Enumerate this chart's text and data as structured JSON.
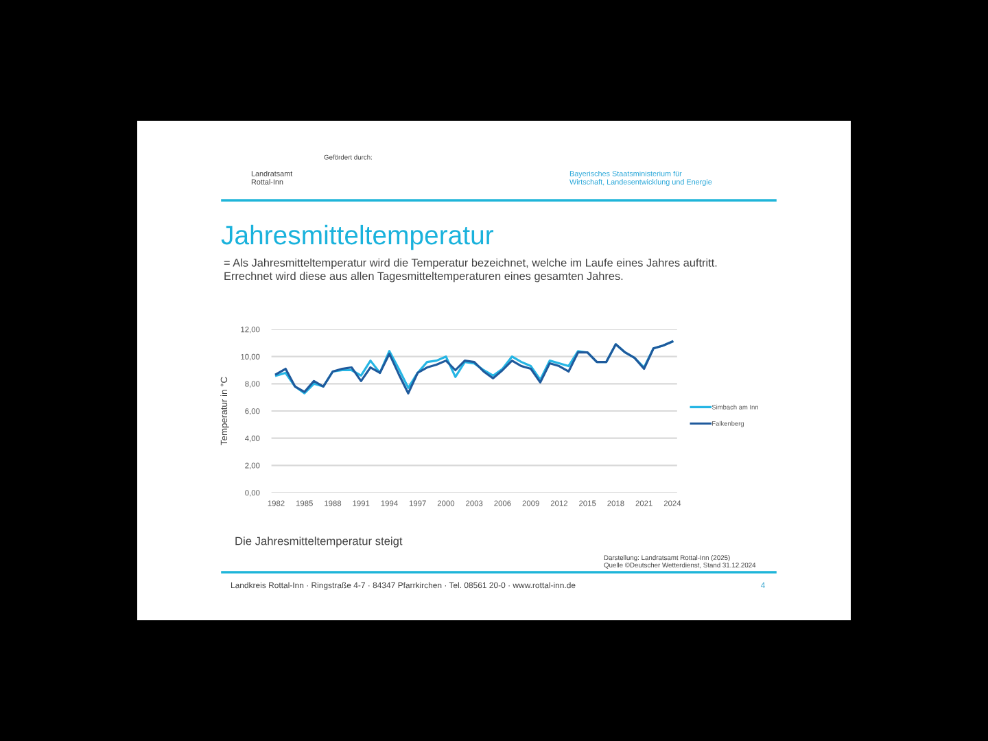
{
  "chart_data": {
    "type": "line",
    "title": "Jahresmitteltemperatur",
    "subtitle": "= Als Jahresmitteltemperatur wird die Temperatur bezeichnet, welche im Laufe eines Jahres auftritt.\nErrechnet wird diese aus allen Tagesmitteltemperaturen eines gesamten Jahres.",
    "ylabel": "Temperatur in °C",
    "annotations": [
      "Landratsamt\nRottal-Inn",
      "Gefördert durch:",
      "Bayerisches Staatsministerium für\nWirtschaft, Landesentwicklung und Energie",
      "Die Jahresmitteltemperatur steigt",
      "Darstellung: Landratsamt Rottal-Inn (2025)\nQuelle ©Deutscher Wetterdienst, Stand 31.12.2024",
      "Landkreis Rottal-Inn · Ringstraße 4-7 · 84347 Pfarrkirchen · Tel. 08561 20-0 · www.rottal-inn.de",
      "4"
    ],
    "x": [
      1982,
      1983,
      1984,
      1985,
      1986,
      1987,
      1988,
      1989,
      1990,
      1991,
      1992,
      1993,
      1994,
      1995,
      1996,
      1997,
      1998,
      1999,
      2000,
      2001,
      2002,
      2003,
      2004,
      2005,
      2006,
      2007,
      2008,
      2009,
      2010,
      2011,
      2012,
      2013,
      2014,
      2015,
      2016,
      2017,
      2018,
      2019,
      2020,
      2021,
      2022,
      2023,
      2024
    ],
    "series": [
      {
        "name": "Simbach am Inn",
        "color": "#25b5e4",
        "values": [
          8.6,
          8.8,
          7.8,
          7.3,
          8.0,
          7.8,
          8.9,
          9.0,
          9.0,
          8.6,
          9.7,
          8.8,
          10.4,
          9.1,
          7.7,
          8.8,
          9.6,
          9.7,
          10.0,
          8.5,
          9.6,
          9.5,
          9.0,
          8.6,
          9.1,
          10.0,
          9.6,
          9.3,
          8.3,
          9.7,
          9.5,
          9.3,
          10.4,
          10.3,
          9.6,
          9.6,
          10.9,
          10.3,
          9.9,
          9.2,
          10.6,
          10.8,
          11.1
        ]
      },
      {
        "name": "Falkenberg",
        "color": "#1f5a9c",
        "values": [
          8.7,
          9.1,
          7.8,
          7.4,
          8.2,
          7.8,
          8.9,
          9.1,
          9.2,
          8.2,
          9.2,
          8.8,
          10.2,
          8.7,
          7.3,
          8.8,
          9.2,
          9.4,
          9.7,
          9.0,
          9.7,
          9.6,
          8.9,
          8.4,
          9.0,
          9.7,
          9.3,
          9.1,
          8.1,
          9.5,
          9.3,
          8.9,
          10.3,
          10.3,
          9.6,
          9.6,
          10.9,
          10.3,
          9.9,
          9.1,
          10.6,
          10.8,
          11.1
        ]
      }
    ],
    "xlim": [
      1981.5,
      2024.5
    ],
    "xticks": [
      1982,
      1985,
      1988,
      1991,
      1994,
      1997,
      2000,
      2003,
      2006,
      2009,
      2012,
      2015,
      2018,
      2021,
      2024
    ],
    "ylim": [
      0,
      12
    ],
    "yticks": [
      {
        "value": 0,
        "label": "0,00"
      },
      {
        "value": 2,
        "label": "2,00"
      },
      {
        "value": 4,
        "label": "4,00"
      },
      {
        "value": 6,
        "label": "6,00"
      },
      {
        "value": 8,
        "label": "8,00"
      },
      {
        "value": 10,
        "label": "10,00"
      },
      {
        "value": 12,
        "label": "12,00"
      }
    ],
    "grid": "y",
    "legend": "right",
    "line_style": "solid"
  }
}
